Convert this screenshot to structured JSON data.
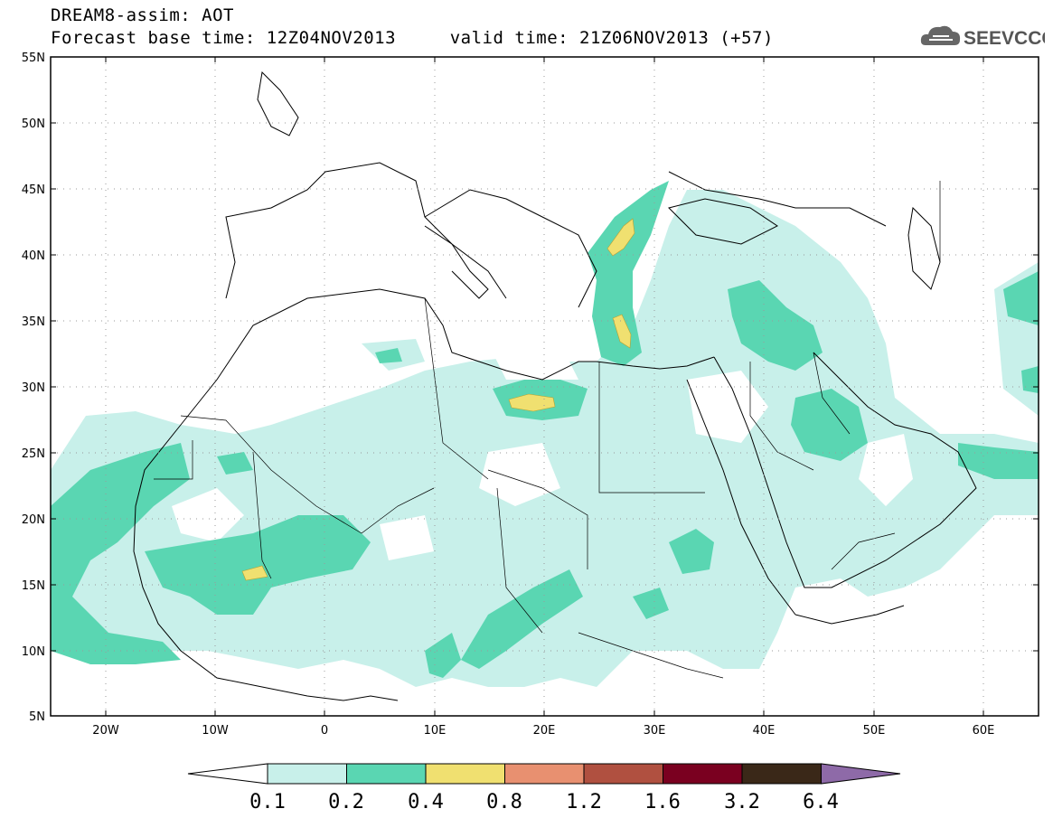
{
  "header": {
    "line1": "DREAM8-assim: AOT",
    "line2": "Forecast base time: 12Z04NOV2013     valid time: 21Z06NOV2013 (+57)"
  },
  "logo": {
    "text": "SEEVCCC",
    "icon": "cloud-icon"
  },
  "map": {
    "lat_labels": [
      "55N",
      "50N",
      "45N",
      "40N",
      "35N",
      "30N",
      "25N",
      "20N",
      "15N",
      "10N",
      "5N"
    ],
    "lon_labels": [
      "20W",
      "10W",
      "0",
      "10E",
      "20E",
      "30E",
      "40E",
      "50E",
      "60E"
    ]
  },
  "colorbar": {
    "labels": [
      "0.1",
      "0.2",
      "0.4",
      "0.8",
      "1.2",
      "1.6",
      "3.2",
      "6.4"
    ],
    "colors": [
      "#ffffff",
      "#c8f0ea",
      "#5ad6b2",
      "#f0e070",
      "#e89070",
      "#b05040",
      "#7a0020",
      "#3a2818",
      "#8e6aa8"
    ]
  },
  "legend_colors": {
    "level1": "#c8f0ea",
    "level2": "#5ad6b2",
    "level3": "#f0e070"
  }
}
